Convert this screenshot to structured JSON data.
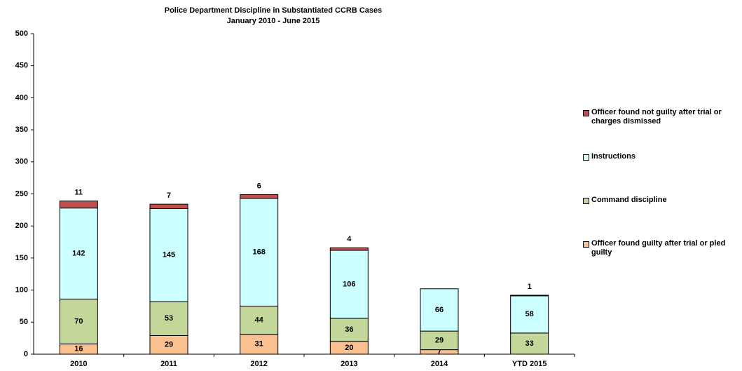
{
  "chart_data": {
    "type": "stacked-bar",
    "title": "Police Department Discipline in Substantiated CCRB Cases",
    "subtitle": "January 2010 - June 2015",
    "categories": [
      "2010",
      "2011",
      "2012",
      "2013",
      "2014",
      "YTD 2015"
    ],
    "series": [
      {
        "name": "Officer found guilty after trial or pled guilty",
        "color": "#fac090",
        "values": [
          16,
          29,
          31,
          20,
          7,
          null
        ]
      },
      {
        "name": "Command discipline",
        "color": "#c4d79b",
        "values": [
          70,
          53,
          44,
          36,
          29,
          33
        ]
      },
      {
        "name": "Instructions",
        "color": "#ccffff",
        "values": [
          142,
          145,
          168,
          106,
          66,
          58
        ]
      },
      {
        "name": "Officer found not guilty after trial or charges dismissed",
        "color": "#c0504d",
        "values": [
          11,
          7,
          6,
          4,
          null,
          1
        ]
      }
    ],
    "ylim": [
      0,
      500
    ],
    "yticks": [
      0,
      50,
      100,
      150,
      200,
      250,
      300,
      350,
      400,
      450,
      500
    ],
    "grid": false
  }
}
